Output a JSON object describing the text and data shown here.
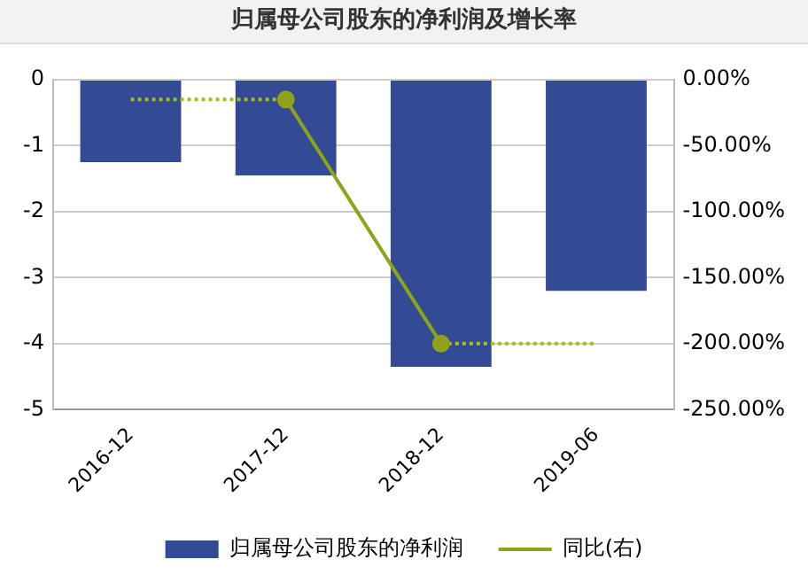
{
  "chart_data": {
    "type": "bar",
    "title": "归属母公司股东的净利润及增长率",
    "categories": [
      "2016-12",
      "2017-12",
      "2018-12",
      "2019-06"
    ],
    "series": [
      {
        "name": "归属母公司股东的净利润",
        "color": "#334a94",
        "values": [
          -1.25,
          -1.45,
          -4.35,
          -3.2
        ]
      },
      {
        "name": "同比(右)",
        "type": "line",
        "axis": "y2",
        "color": "#8ea21a",
        "marker": "circle",
        "line_style": "solid",
        "values": [
          null,
          -15,
          -200,
          null
        ]
      },
      {
        "type": "line",
        "axis": "y2",
        "color": "#a3be1e",
        "marker": "none",
        "line_style": "dotted",
        "values": [
          -15,
          -15,
          null,
          null
        ]
      },
      {
        "type": "line",
        "axis": "y2",
        "color": "#a3be1e",
        "marker": "none",
        "line_style": "dotted",
        "values": [
          null,
          null,
          -200,
          -200
        ]
      }
    ],
    "ylim": [
      -5,
      0
    ],
    "yticks": [
      -5,
      -4,
      -3,
      -2,
      -1,
      0
    ],
    "y2lim": [
      -250,
      0
    ],
    "y2ticks": [
      {
        "value": -250,
        "label": "-250.00%"
      },
      {
        "value": -200,
        "label": "-200.00%"
      },
      {
        "value": -150,
        "label": "-150.00%"
      },
      {
        "value": -100,
        "label": "-100.00%"
      },
      {
        "value": -50,
        "label": "-50.00%"
      },
      {
        "value": 0,
        "label": "0.00%"
      }
    ],
    "grid": "y",
    "legend": "bottom"
  }
}
